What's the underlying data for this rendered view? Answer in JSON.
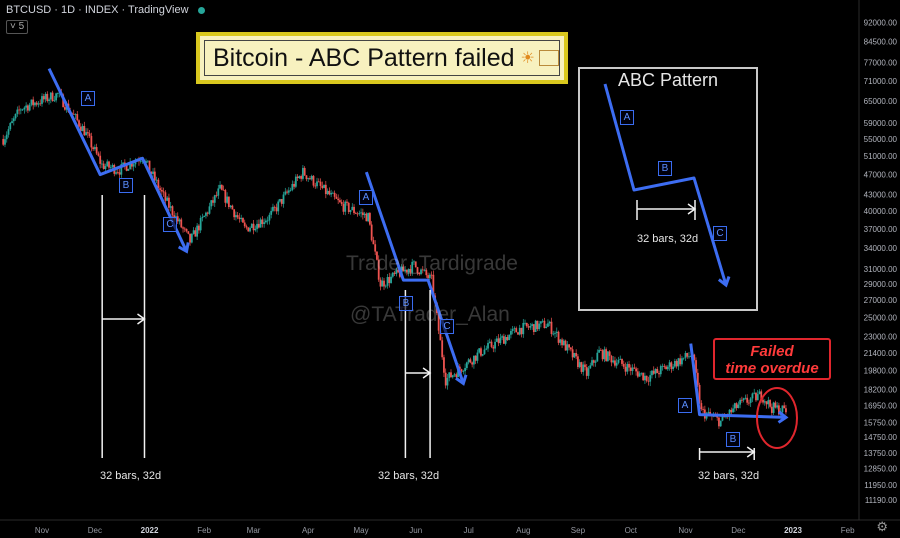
{
  "header": {
    "symbol_line": "BTCUSD · 1D · INDEX · TradingView",
    "interval_chip": "5"
  },
  "title": "Bitcoin - ABC Pattern failed",
  "title_logo": "sun-logo",
  "legend_box": {
    "title": "ABC Pattern",
    "bars_label": "32 bars, 32d",
    "labels": [
      "A",
      "B",
      "C"
    ]
  },
  "failed_box": {
    "line1": "Failed",
    "line2": "time overdue"
  },
  "watermarks": [
    "Trader_Tardigrade",
    "@TATrader_Alan"
  ],
  "measure_labels": [
    "32 bars, 32d",
    "32 bars, 32d",
    "32 bars, 32d"
  ],
  "pattern_labels": [
    [
      "A",
      "B",
      "C"
    ],
    [
      "A",
      "B",
      "C"
    ],
    [
      "A",
      "B"
    ]
  ],
  "colors": {
    "up": "#26a69a",
    "down": "#ef5350",
    "arrow": "#3d6df2",
    "failed": "#e0262d",
    "title_border": "#d9c81e"
  },
  "chart_data": {
    "type": "candlestick",
    "x_ticks": [
      "Nov",
      "Dec",
      "2022",
      "Feb",
      "Mar",
      "Apr",
      "May",
      "Jun",
      "Jul",
      "Aug",
      "Sep",
      "Oct",
      "Nov",
      "Dec",
      "2023",
      "Feb"
    ],
    "x_tick_dates": [
      "2021-11-01",
      "2021-12-01",
      "2022-01-01",
      "2022-02-01",
      "2022-03-01",
      "2022-04-01",
      "2022-05-01",
      "2022-06-01",
      "2022-07-01",
      "2022-08-01",
      "2022-09-01",
      "2022-10-01",
      "2022-11-01",
      "2022-12-01",
      "2023-01-01",
      "2023-02-01"
    ],
    "y_ticks": [
      92000,
      84500,
      77000,
      71000,
      65000,
      59000,
      55000,
      51000,
      47000,
      43000,
      40000,
      37000,
      34000,
      31000,
      29000,
      27000,
      25000,
      23000,
      21400,
      19800,
      18200,
      16950,
      15750,
      14750,
      13750,
      12850,
      11950,
      11190
    ],
    "y_tick_labels": [
      "92000.00",
      "84500.00",
      "77000.00",
      "71000.00",
      "65000.00",
      "59000.00",
      "55000.00",
      "51000.00",
      "47000.00",
      "43000.00",
      "40000.00",
      "37000.00",
      "34000.00",
      "31000.00",
      "29000.00",
      "27000.00",
      "25000.00",
      "23000.00",
      "21400.00",
      "19800.00",
      "18200.00",
      "16950.00",
      "15750.00",
      "14750.00",
      "13750.00",
      "12850.00",
      "11950.00",
      "11190.00"
    ],
    "y_scale": "log",
    "ylim": [
      10700,
      98000
    ],
    "price_path": [
      [
        "2021-10-10",
        55000
      ],
      [
        "2021-10-20",
        63000
      ],
      [
        "2021-11-10",
        67000
      ],
      [
        "2021-11-25",
        57000
      ],
      [
        "2021-12-05",
        49000
      ],
      [
        "2021-12-15",
        48000
      ],
      [
        "2021-12-28",
        51000
      ],
      [
        "2022-01-10",
        42000
      ],
      [
        "2022-01-24",
        35000
      ],
      [
        "2022-02-10",
        44000
      ],
      [
        "2022-02-24",
        37000
      ],
      [
        "2022-03-10",
        39000
      ],
      [
        "2022-03-29",
        47500
      ],
      [
        "2022-04-20",
        41000
      ],
      [
        "2022-05-05",
        39000
      ],
      [
        "2022-05-12",
        29000
      ],
      [
        "2022-05-31",
        31500
      ],
      [
        "2022-06-10",
        29500
      ],
      [
        "2022-06-18",
        19000
      ],
      [
        "2022-07-08",
        21500
      ],
      [
        "2022-07-30",
        23800
      ],
      [
        "2022-08-15",
        24300
      ],
      [
        "2022-09-06",
        19500
      ],
      [
        "2022-09-13",
        21500
      ],
      [
        "2022-10-10",
        19200
      ],
      [
        "2022-11-05",
        21300
      ],
      [
        "2022-11-10",
        16500
      ],
      [
        "2022-11-21",
        15800
      ],
      [
        "2022-12-01",
        17000
      ],
      [
        "2022-12-14",
        17800
      ],
      [
        "2022-12-20",
        16800
      ],
      [
        "2022-12-28",
        16600
      ]
    ],
    "abc_patterns": [
      {
        "label": "1",
        "a_start": [
          "2021-11-05",
          75000
        ],
        "a_end": [
          "2021-12-04",
          47000
        ],
        "b_end": [
          "2021-12-28",
          50500
        ],
        "c_end": [
          "2022-01-22",
          33500
        ]
      },
      {
        "label": "2",
        "a_start": [
          "2022-05-04",
          47500
        ],
        "a_end": [
          "2022-05-25",
          29500
        ],
        "b_end": [
          "2022-06-08",
          29500
        ],
        "c_end": [
          "2022-06-28",
          18700
        ]
      },
      {
        "label": "3",
        "a_start": [
          "2022-11-04",
          22300
        ],
        "a_end": [
          "2022-11-09",
          16300
        ],
        "b_end": [
          "2022-12-28",
          16100
        ]
      }
    ]
  }
}
